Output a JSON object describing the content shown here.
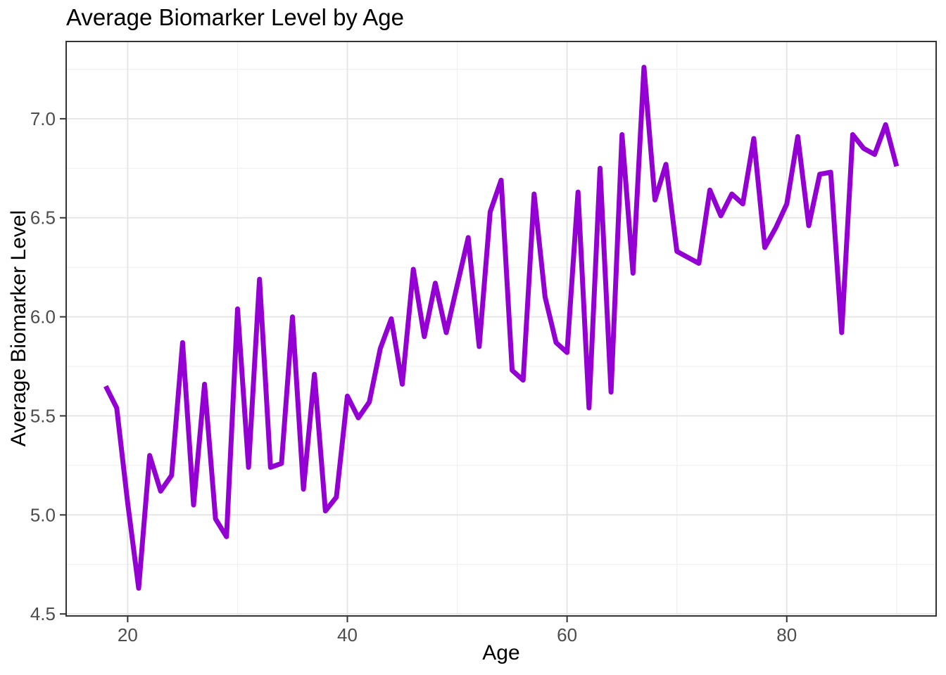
{
  "chart_data": {
    "type": "line",
    "title": "Average Biomarker Level by Age",
    "xlabel": "Age",
    "ylabel": "Average Biomarker Level",
    "legend": "none",
    "grid": true,
    "xlim": [
      14.4,
      93.6
    ],
    "ylim": [
      4.49,
      7.39
    ],
    "x_ticks": {
      "values": [
        20,
        40,
        60,
        80
      ],
      "labels": [
        "20",
        "40",
        "60",
        "80"
      ]
    },
    "y_ticks": {
      "values": [
        4.5,
        5.0,
        5.5,
        6.0,
        6.5,
        7.0
      ],
      "labels": [
        "4.5",
        "5.0",
        "5.5",
        "6.0",
        "6.5",
        "7.0"
      ]
    },
    "x_minor_gridlines": [
      30,
      50,
      70,
      90
    ],
    "y_minor_gridlines": [
      4.75,
      5.25,
      5.75,
      6.25,
      6.75,
      7.25
    ],
    "x": [
      18,
      19,
      20,
      21,
      22,
      23,
      24,
      25,
      26,
      27,
      28,
      29,
      30,
      31,
      32,
      33,
      34,
      35,
      36,
      37,
      38,
      39,
      40,
      41,
      42,
      43,
      44,
      45,
      46,
      47,
      48,
      49,
      50,
      51,
      52,
      53,
      54,
      55,
      56,
      57,
      58,
      59,
      60,
      61,
      62,
      63,
      64,
      65,
      66,
      67,
      68,
      69,
      70,
      71,
      72,
      73,
      74,
      75,
      76,
      77,
      78,
      79,
      80,
      81,
      82,
      83,
      84,
      85,
      86,
      87,
      88,
      89,
      90
    ],
    "y": [
      5.65,
      5.54,
      5.06,
      4.63,
      5.3,
      5.12,
      5.2,
      5.87,
      5.05,
      5.66,
      4.98,
      4.89,
      6.04,
      5.24,
      6.19,
      5.24,
      5.26,
      6.0,
      5.13,
      5.71,
      5.02,
      5.09,
      5.6,
      5.49,
      5.57,
      5.84,
      5.99,
      5.66,
      6.24,
      5.9,
      6.17,
      5.92,
      6.16,
      6.4,
      5.85,
      6.53,
      6.69,
      5.73,
      5.68,
      6.62,
      6.1,
      5.87,
      5.82,
      6.63,
      5.54,
      6.75,
      5.62,
      6.92,
      6.22,
      7.26,
      6.59,
      6.77,
      6.33,
      6.3,
      6.27,
      6.64,
      6.51,
      6.62,
      6.57,
      6.9,
      6.35,
      6.45,
      6.57,
      6.91,
      6.46,
      6.72,
      6.73,
      5.92,
      6.92,
      6.85,
      6.82,
      6.97,
      6.76
    ],
    "style": {
      "line_color": "#9400D3",
      "line_width": 7,
      "panel_background": "#ffffff",
      "panel_border_color": "#333333",
      "grid_major_color": "#E4E4E4",
      "grid_minor_color": "#F0F0F0",
      "tick_mark_color": "#333333",
      "tick_label_color": "#4D4D4D",
      "title_color": "#000000"
    }
  }
}
